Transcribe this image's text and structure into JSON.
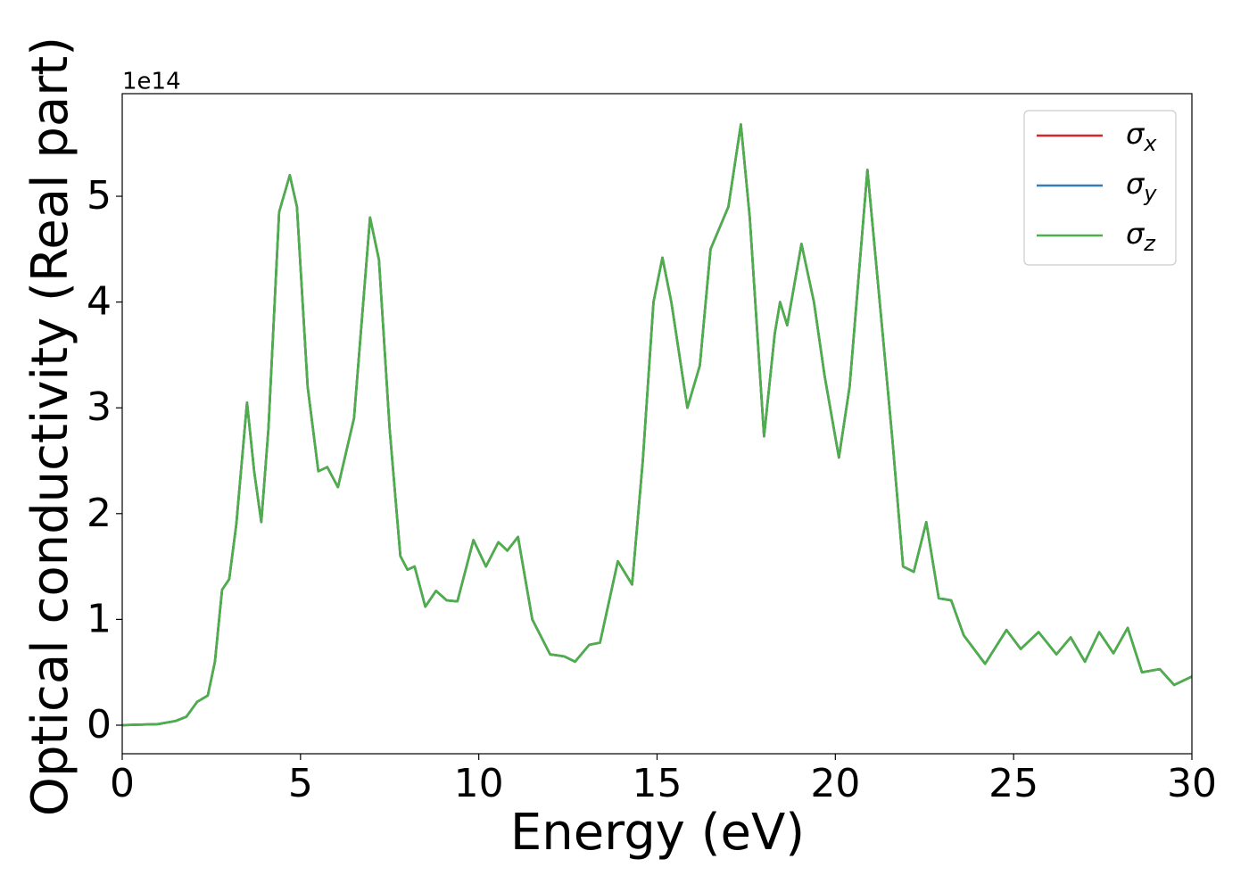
{
  "chart_data": {
    "type": "line",
    "x_label": "Energy (eV)",
    "y_label": "Optical conductivity (Real part)",
    "y_offset_label": "1e14",
    "xlim": [
      0,
      30
    ],
    "xticks": [
      0,
      5,
      10,
      15,
      20,
      25,
      30
    ],
    "ylim": [
      -0.27,
      5.97
    ],
    "yticks": [
      0,
      1,
      2,
      3,
      4,
      5
    ],
    "grid": false,
    "legend": "upper right",
    "x": [
      0,
      1,
      1.5,
      1.8,
      2.1,
      2.4,
      2.6,
      2.8,
      3.0,
      3.2,
      3.5,
      3.7,
      3.9,
      4.1,
      4.4,
      4.7,
      4.9,
      5.2,
      5.5,
      5.75,
      6.05,
      6.5,
      6.95,
      7.2,
      7.5,
      7.8,
      8.0,
      8.2,
      8.5,
      8.8,
      9.1,
      9.4,
      9.85,
      10.2,
      10.55,
      10.8,
      11.1,
      11.5,
      12.0,
      12.4,
      12.7,
      13.1,
      13.4,
      13.9,
      14.3,
      14.6,
      14.9,
      15.15,
      15.4,
      15.85,
      16.2,
      16.5,
      17.0,
      17.35,
      17.6,
      18.0,
      18.3,
      18.45,
      18.65,
      19.05,
      19.4,
      19.7,
      20.1,
      20.4,
      20.9,
      21.3,
      21.6,
      21.9,
      22.2,
      22.55,
      22.9,
      23.25,
      23.6,
      24.2,
      24.8,
      25.2,
      25.7,
      26.2,
      26.6,
      27.0,
      27.4,
      27.8,
      28.2,
      28.6,
      29.1,
      29.5,
      30
    ],
    "series": [
      {
        "name": "σx",
        "color": "#d62728",
        "values": [
          0.0,
          0.01,
          0.04,
          0.08,
          0.22,
          0.28,
          0.6,
          1.28,
          1.38,
          1.9,
          3.05,
          2.4,
          1.92,
          2.8,
          4.85,
          5.2,
          4.9,
          3.2,
          2.4,
          2.44,
          2.25,
          2.9,
          4.8,
          4.4,
          2.8,
          1.6,
          1.47,
          1.5,
          1.12,
          1.27,
          1.18,
          1.17,
          1.75,
          1.5,
          1.73,
          1.65,
          1.78,
          1.0,
          0.67,
          0.65,
          0.6,
          0.76,
          0.78,
          1.55,
          1.33,
          2.5,
          4.0,
          4.42,
          4.0,
          3.0,
          3.4,
          4.5,
          4.9,
          5.68,
          4.8,
          2.73,
          3.7,
          4.0,
          3.78,
          4.55,
          4.0,
          3.3,
          2.53,
          3.2,
          5.25,
          3.8,
          2.7,
          1.5,
          1.45,
          1.92,
          1.2,
          1.18,
          0.85,
          0.58,
          0.9,
          0.72,
          0.88,
          0.67,
          0.83,
          0.6,
          0.88,
          0.68,
          0.92,
          0.5,
          0.53,
          0.38,
          0.46
        ]
      },
      {
        "name": "σy",
        "color": "#377eb8",
        "values": [
          0.0,
          0.01,
          0.04,
          0.08,
          0.22,
          0.28,
          0.6,
          1.28,
          1.38,
          1.9,
          3.05,
          2.4,
          1.92,
          2.8,
          4.85,
          5.2,
          4.9,
          3.2,
          2.4,
          2.44,
          2.25,
          2.9,
          4.8,
          4.4,
          2.8,
          1.6,
          1.47,
          1.5,
          1.12,
          1.27,
          1.18,
          1.17,
          1.75,
          1.5,
          1.73,
          1.65,
          1.78,
          1.0,
          0.67,
          0.65,
          0.6,
          0.76,
          0.78,
          1.55,
          1.33,
          2.5,
          4.0,
          4.42,
          4.0,
          3.0,
          3.4,
          4.5,
          4.9,
          5.68,
          4.8,
          2.73,
          3.7,
          4.0,
          3.78,
          4.55,
          4.0,
          3.3,
          2.53,
          3.2,
          5.25,
          3.8,
          2.7,
          1.5,
          1.45,
          1.92,
          1.2,
          1.18,
          0.85,
          0.58,
          0.9,
          0.72,
          0.88,
          0.67,
          0.83,
          0.6,
          0.88,
          0.68,
          0.92,
          0.5,
          0.53,
          0.38,
          0.46
        ]
      },
      {
        "name": "σz",
        "color": "#4daf4a",
        "values": [
          0.0,
          0.01,
          0.04,
          0.08,
          0.22,
          0.28,
          0.6,
          1.28,
          1.38,
          1.9,
          3.05,
          2.4,
          1.92,
          2.8,
          4.85,
          5.2,
          4.9,
          3.2,
          2.4,
          2.44,
          2.25,
          2.9,
          4.8,
          4.4,
          2.8,
          1.6,
          1.47,
          1.5,
          1.12,
          1.27,
          1.18,
          1.17,
          1.75,
          1.5,
          1.73,
          1.65,
          1.78,
          1.0,
          0.67,
          0.65,
          0.6,
          0.76,
          0.78,
          1.55,
          1.33,
          2.5,
          4.0,
          4.42,
          4.0,
          3.0,
          3.4,
          4.5,
          4.9,
          5.68,
          4.8,
          2.73,
          3.7,
          4.0,
          3.78,
          4.55,
          4.0,
          3.3,
          2.53,
          3.2,
          5.25,
          3.8,
          2.7,
          1.5,
          1.45,
          1.92,
          1.2,
          1.18,
          0.85,
          0.58,
          0.9,
          0.72,
          0.88,
          0.67,
          0.83,
          0.6,
          0.88,
          0.68,
          0.92,
          0.5,
          0.53,
          0.38,
          0.46
        ]
      }
    ]
  }
}
